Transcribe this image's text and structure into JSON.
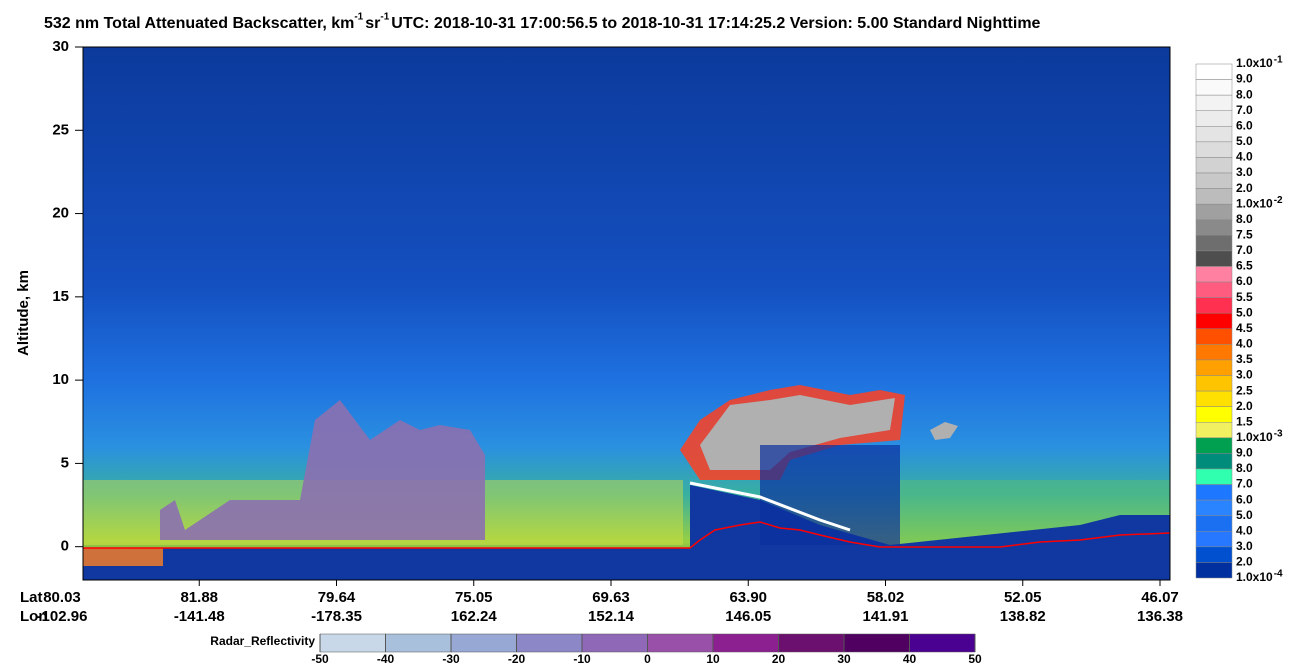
{
  "chart_data": {
    "type": "curtain",
    "title_parts": [
      {
        "text": "532 nm Total Attenuated Backscatter, km"
      },
      {
        "text": "-1",
        "sup": true
      },
      {
        "text": " sr"
      },
      {
        "text": "-1",
        "sup": true
      },
      {
        "text": "    UTC:  2018-10-31 17:00:56.5  to  2018-10-31 17:14:25.2    Version: 5.00  Standard  Nighttime"
      }
    ],
    "ylabel": "Altitude, km",
    "ylim": [
      -2,
      30
    ],
    "yticks": [
      0,
      5,
      10,
      15,
      20,
      25,
      30
    ],
    "x_rows": [
      {
        "name": "Lat",
        "values": [
          80.03,
          81.88,
          79.64,
          75.05,
          69.63,
          {
            "value": 63.9,
            "label": "63.90"
          },
          58.02,
          52.05,
          46.07
        ]
      },
      {
        "name": "Lon",
        "values": [
          -102.96,
          -141.48,
          -178.35,
          162.24,
          152.14,
          146.05,
          141.91,
          138.82,
          136.38
        ]
      }
    ],
    "colorbar": {
      "labels": [
        {
          "text": "1.0x10",
          "exp": "-1"
        },
        {
          "text": "9.0"
        },
        {
          "text": "8.0"
        },
        {
          "text": "7.0"
        },
        {
          "text": "6.0"
        },
        {
          "text": "5.0"
        },
        {
          "text": "4.0"
        },
        {
          "text": "3.0"
        },
        {
          "text": "2.0"
        },
        {
          "text": "1.0x10",
          "exp": "-2"
        },
        {
          "text": "8.0"
        },
        {
          "text": "7.5"
        },
        {
          "text": "7.0"
        },
        {
          "text": "6.5"
        },
        {
          "text": "6.0"
        },
        {
          "text": "5.5"
        },
        {
          "text": "5.0"
        },
        {
          "text": "4.5"
        },
        {
          "text": "4.0"
        },
        {
          "text": "3.5"
        },
        {
          "text": "3.0"
        },
        {
          "text": "2.5"
        },
        {
          "text": "2.0"
        },
        {
          "text": "1.5"
        },
        {
          "text": "1.0x10",
          "exp": "-3"
        },
        {
          "text": "9.0"
        },
        {
          "text": "8.0"
        },
        {
          "text": "7.0"
        },
        {
          "text": "6.0"
        },
        {
          "text": "5.0"
        },
        {
          "text": "4.0"
        },
        {
          "text": "3.0"
        },
        {
          "text": "2.0"
        },
        {
          "text": "1.0x10",
          "exp": "-4"
        }
      ],
      "colors": [
        "#ffffff",
        "#fafafa",
        "#f3f3f3",
        "#ececec",
        "#e4e4e4",
        "#dcdcdc",
        "#d2d2d2",
        "#c8c8c8",
        "#bcbcbc",
        "#a0a0a0",
        "#8a8a8a",
        "#6e6e6e",
        "#4e4e4e",
        "#ff80a0",
        "#ff5c80",
        "#ff3050",
        "#ff0000",
        "#ff5000",
        "#ff7800",
        "#ffa000",
        "#ffc400",
        "#ffe000",
        "#ffff00",
        "#f0f060",
        "#00a050",
        "#008c7a",
        "#30ffb0",
        "#1e78ff",
        "#2a84ff",
        "#1a70f0",
        "#2878ff",
        "#0050d0",
        "#0030a0"
      ]
    },
    "radar": {
      "title": "Radar_Reflectivity",
      "xlim": [
        -50,
        50
      ],
      "xticks": [
        -50,
        -40,
        -30,
        -20,
        -10,
        0,
        10,
        20,
        30,
        40,
        50
      ],
      "colors": [
        "#c8d8e8",
        "#a8c0dc",
        "#98a8d4",
        "#8c88c8",
        "#9068b8",
        "#9850a8",
        "#8c2090",
        "#6c1070",
        "#500060",
        "#4a0090"
      ]
    }
  }
}
